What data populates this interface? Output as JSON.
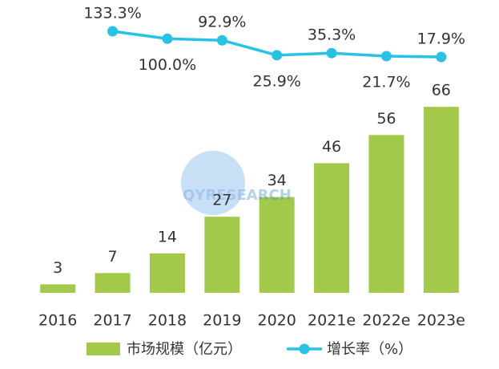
{
  "chart_data": {
    "type": "bar",
    "categories": [
      "2016",
      "2017",
      "2018",
      "2019",
      "2020",
      "2021e",
      "2022e",
      "2023e"
    ],
    "series": [
      {
        "name": "市场规模（亿元）",
        "type": "bar",
        "color": "#a2c94a",
        "values": [
          3,
          7,
          14,
          27,
          34,
          46,
          56,
          66
        ]
      },
      {
        "name": "增长率（%）",
        "type": "line",
        "axis": "y2",
        "color": "#28c2e6",
        "values": [
          null,
          133.3,
          100.0,
          92.9,
          25.9,
          35.3,
          21.7,
          17.9
        ],
        "value_labels": [
          null,
          "133.3%",
          "100.0%",
          "92.9%",
          "25.9%",
          "35.3%",
          "21.7%",
          "17.9%"
        ]
      }
    ],
    "ylim": [
      0,
      80
    ],
    "y2lim": [
      0,
      150
    ],
    "watermark": "QYRESEARCH"
  }
}
